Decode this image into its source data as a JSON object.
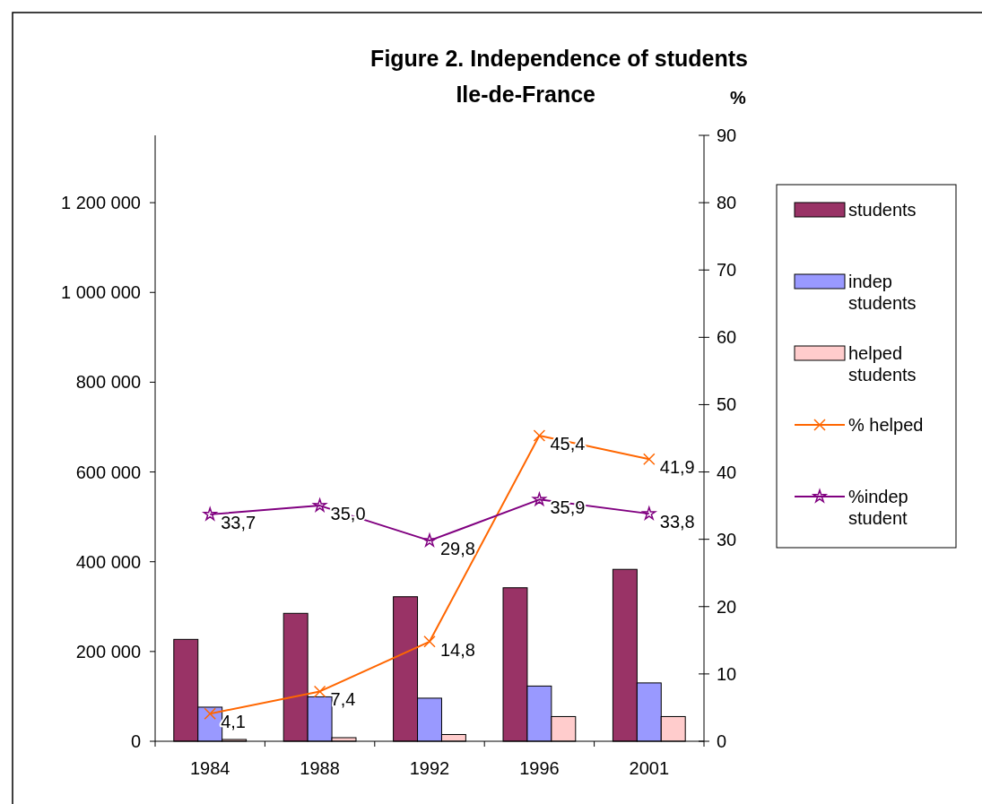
{
  "chart_data": {
    "type": "bar",
    "title": "Figure 2. Independence of students",
    "subtitle": "Ile-de-France",
    "y2label": "%",
    "categories": [
      "1984",
      "1988",
      "1992",
      "1996",
      "2001"
    ],
    "series": [
      {
        "name": "students",
        "color": "#993366",
        "values": [
          227000,
          285000,
          322000,
          342000,
          383000
        ]
      },
      {
        "name": "indep students",
        "color": "#9999ff",
        "values": [
          76000,
          99000,
          96000,
          123000,
          130000
        ]
      },
      {
        "name": "helped students",
        "color": "#ffcccc",
        "values": [
          4000,
          8000,
          15000,
          55000,
          55000
        ]
      },
      {
        "name": "% helped",
        "type": "line",
        "axis": "y2",
        "color": "#ff6600",
        "marker": "cross",
        "values": [
          4.1,
          7.4,
          14.8,
          45.4,
          41.9
        ],
        "value_labels": [
          "4,1",
          "7,4",
          "14,8",
          "45,4",
          "41,9"
        ]
      },
      {
        "name": "%indep student",
        "type": "line",
        "axis": "y2",
        "color": "#800080",
        "marker": "star",
        "values": [
          33.7,
          35.0,
          29.8,
          35.9,
          33.8
        ],
        "value_labels": [
          "33,7",
          "35,0",
          "29,8",
          "35,9",
          "33,8"
        ]
      }
    ],
    "ylim": [
      0,
      1350000
    ],
    "yticks": [
      0,
      {
        "value": 200000,
        "label": "200 000"
      },
      {
        "value": 400000,
        "label": "400 000"
      },
      {
        "value": 600000,
        "label": "600 000"
      },
      {
        "value": 800000,
        "label": "800 000"
      },
      {
        "value": 1000000,
        "label": "1 000 000"
      },
      {
        "value": 1200000,
        "label": "1 200 000"
      }
    ],
    "y2lim": [
      0,
      90
    ],
    "y2ticks": [
      0,
      10,
      20,
      30,
      40,
      50,
      60,
      70,
      80,
      90
    ],
    "grid": false,
    "legend": "right",
    "line_style": "solid"
  }
}
